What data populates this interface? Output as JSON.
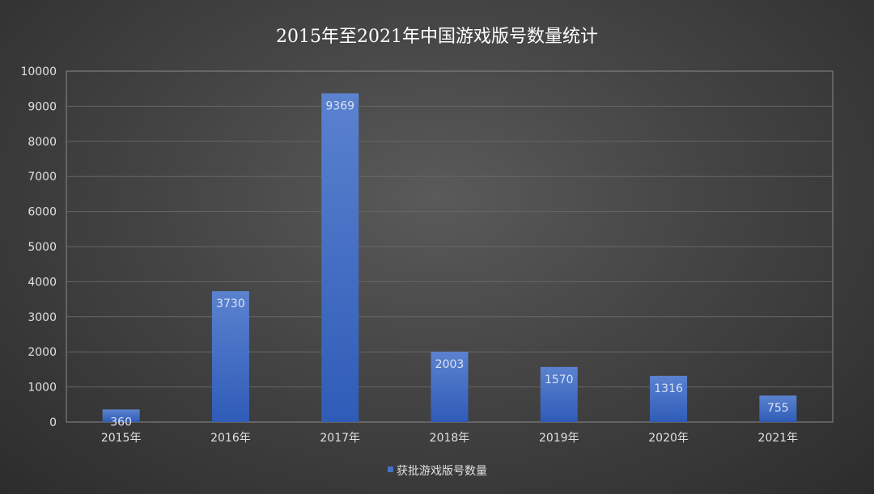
{
  "chart_data": {
    "type": "bar",
    "title": "2015年至2021年中国游戏版号数量统计",
    "xlabel": "",
    "ylabel": "",
    "categories": [
      "2015年",
      "2016年",
      "2017年",
      "2018年",
      "2019年",
      "2020年",
      "2021年"
    ],
    "series": [
      {
        "name": "获批游戏版号数量",
        "values": [
          360,
          3730,
          9369,
          2003,
          1570,
          1316,
          755
        ],
        "color": "#4472C4"
      }
    ],
    "ylim": [
      0,
      10000
    ],
    "yticks": [
      0,
      1000,
      2000,
      3000,
      4000,
      5000,
      6000,
      7000,
      8000,
      9000,
      10000
    ],
    "grid": true,
    "legend": "bottom",
    "data_labels": true
  }
}
